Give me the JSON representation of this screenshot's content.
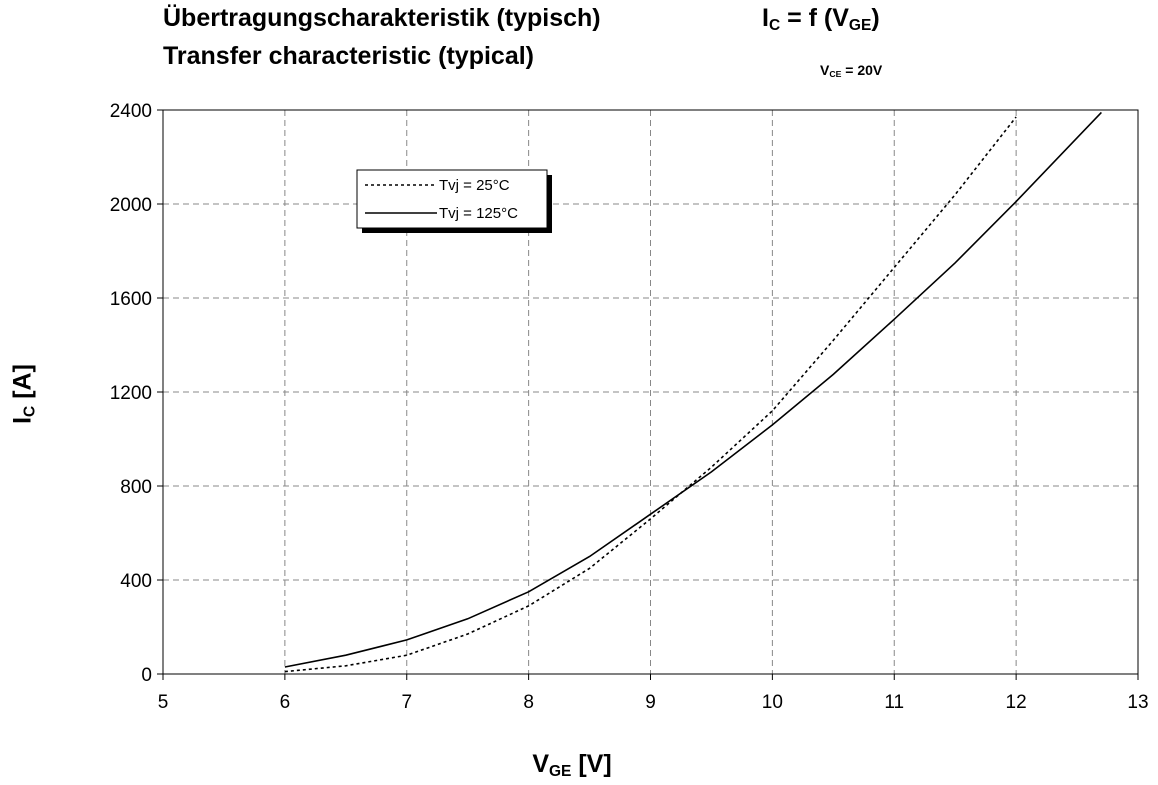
{
  "header": {
    "title_de": "Übertragungscharakteristik (typisch)",
    "title_en": "Transfer characteristic (typical)",
    "formula_main": "I",
    "formula_sub": "C",
    "formula_rest": " = f (V",
    "formula_sub2": "GE",
    "formula_end": ")",
    "condition_main": "V",
    "condition_sub": "CE",
    "condition_rest": " = 20V"
  },
  "chart_data": {
    "type": "line",
    "xlabel_main": "V",
    "xlabel_sub": "GE",
    "xlabel_rest": " [V]",
    "ylabel_main": "I",
    "ylabel_sub": "C",
    "ylabel_rest": " [A]",
    "xlim": [
      5,
      13
    ],
    "ylim": [
      0,
      2400
    ],
    "xticks": [
      5,
      6,
      7,
      8,
      9,
      10,
      11,
      12,
      13
    ],
    "yticks": [
      0,
      400,
      800,
      1200,
      1600,
      2000,
      2400
    ],
    "grid": true,
    "legend_position": "top-left",
    "series": [
      {
        "name": "Tvj = 25°C",
        "style": "dotted",
        "color": "#000000",
        "x": [
          6.0,
          6.5,
          7.0,
          7.5,
          8.0,
          8.5,
          9.0,
          9.5,
          10.0,
          10.5,
          11.0,
          11.5,
          12.0
        ],
        "y": [
          10,
          35,
          80,
          170,
          290,
          450,
          660,
          880,
          1120,
          1420,
          1730,
          2040,
          2370
        ]
      },
      {
        "name": "Tvj = 125°C",
        "style": "solid",
        "color": "#000000",
        "x": [
          6.0,
          6.5,
          7.0,
          7.5,
          8.0,
          8.5,
          9.0,
          9.5,
          10.0,
          10.5,
          11.0,
          11.5,
          12.0,
          12.7
        ],
        "y": [
          30,
          80,
          145,
          235,
          350,
          500,
          680,
          860,
          1060,
          1275,
          1510,
          1750,
          2010,
          2390
        ]
      }
    ]
  }
}
